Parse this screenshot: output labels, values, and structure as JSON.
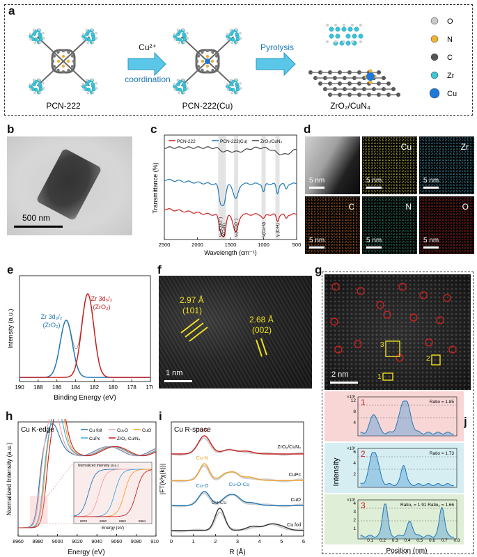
{
  "panels": {
    "a": "a",
    "b": "b",
    "c": "c",
    "d": "d",
    "e": "e",
    "f": "f",
    "g": "g",
    "h": "h",
    "i": "i",
    "j": "j"
  },
  "schematic": {
    "labels": [
      "PCN-222",
      "PCN-222(Cu)",
      "ZrO₂/CuN₄"
    ],
    "arrow1": {
      "line1": "Cu²⁺",
      "line2": "coordination"
    },
    "arrow2": "Pyrolysis",
    "legend": [
      {
        "label": "O",
        "color": "#c9c9c9"
      },
      {
        "label": "N",
        "color": "#f0b030"
      },
      {
        "label": "C",
        "color": "#555555"
      },
      {
        "label": "Zr",
        "color": "#3cc4d8"
      },
      {
        "label": "Cu",
        "color": "#1e78d8"
      }
    ]
  },
  "b_scalebar": "500 nm",
  "ftir": {
    "legend": [
      "PCN-222",
      "PCN-222(Cu)",
      "ZrO₂/CuN₄"
    ],
    "colors": [
      "#c81e1e",
      "#1f77b4",
      "#444444"
    ],
    "ylabel": "Transmittance (%)",
    "xlabel": "Wavelength (cm⁻¹)",
    "xticks": [
      "2500",
      "2000",
      "1500",
      "1000",
      "500"
    ],
    "annotations": [
      "νₐₛ(COO⁻)",
      "ν(C=N)",
      "νₛ(COO⁻)",
      "ν(Cu-N)",
      "γ (C-H)"
    ]
  },
  "eds": {
    "elements": [
      "",
      "Cu",
      "Zr",
      "C",
      "N",
      "O"
    ],
    "scalebar": "5 nm",
    "colors": [
      "#bbbbbb",
      "#d8d83a",
      "#3aa8c8",
      "#e07020",
      "#2a9a70",
      "#d02020"
    ]
  },
  "xps": {
    "peak1": {
      "line1": "Zr 3d₃/₂",
      "line2": "(ZrO₂)"
    },
    "peak2": {
      "line1": "Zr 3d₅/₂",
      "line2": "(ZrO₂)"
    },
    "ylabel": "Intensity (a.u.)",
    "xlabel": "Binding Energy (eV)",
    "xticks": [
      "190",
      "188",
      "186",
      "184",
      "182",
      "180",
      "178",
      "176"
    ],
    "xlim": [
      190,
      176
    ]
  },
  "haadf_f": {
    "d1": "2.97 Å",
    "h1": "(101)",
    "d2": "2.68 Å",
    "h2": "(002)",
    "scalebar": "1 nm"
  },
  "haadf_g": {
    "scalebar": "2 nm",
    "boxes": [
      "1",
      "2",
      "3"
    ]
  },
  "profiles": [
    {
      "id": "1",
      "ratio": "Ratio = 1.85",
      "mult": "×10³",
      "yticks": [
        "12",
        "8",
        "4"
      ],
      "bg": "#f8d6d6",
      "color": "#1f77b4"
    },
    {
      "id": "2",
      "ratio": "Ratio = 1.73",
      "mult": "×10³",
      "yticks": [
        "6",
        "4",
        "2"
      ],
      "bg": "#d6eef2",
      "color": "#1f77b4"
    },
    {
      "id": "3",
      "ratio": "Ratio₁ = 1.91  Ratio₂ = 1.66",
      "mult": "×10³",
      "yticks": [
        "4",
        "3",
        "2",
        "1"
      ],
      "bg": "#dfeed6",
      "color": "#1f77b4"
    }
  ],
  "profiles_axis": {
    "ylabel": "Intensity",
    "xlabel": "Position (nm)",
    "xticks": [
      "0.1",
      "0.2",
      "0.3",
      "0.4",
      "0.5",
      "0.6",
      "0.7",
      "0.8"
    ]
  },
  "xanes": {
    "title": "Cu K-edge",
    "legend": [
      {
        "label": "Cu foil",
        "color": "#1f77b4"
      },
      {
        "label": "Cu₂O",
        "color": "#f0a0a0"
      },
      {
        "label": "CuO",
        "color": "#f0a030"
      },
      {
        "label": "CuPc",
        "color": "#3aa8d8"
      },
      {
        "label": "ZrO₂-Cu/N₄",
        "color": "#c81e1e"
      }
    ],
    "ylabel": "Normalized Intensity (a.u.)",
    "xlabel": "Energy (eV)",
    "xticks": [
      "8960",
      "8980",
      "9000",
      "9020",
      "9040",
      "9060",
      "9080",
      "9100"
    ],
    "inset_xlabel": "Energy (eV)",
    "inset_ylabel": "Normalized Intensity (a.u.)",
    "inset_xticks": [
      "8978",
      "8980",
      "8982",
      "8984"
    ]
  },
  "exafs": {
    "title": "Cu R-space",
    "curves": [
      {
        "label": "ZrO₂/CuN₄",
        "color": "#c81e1e",
        "peak": "Cu-N"
      },
      {
        "label": "CuPc",
        "color": "#f0a030",
        "peak": "Cu-N"
      },
      {
        "label": "CuO",
        "color": "#1f77b4",
        "peak": "Cu-O"
      },
      {
        "label": "Cu foil",
        "color": "#333333",
        "peak": "Cu-Cu"
      }
    ],
    "extra_peak": "Cu-O-Cu",
    "ylabel": "|FT(k³χ(k))|",
    "xlabel": "R (Å)",
    "xticks": [
      "0",
      "1",
      "2",
      "3",
      "4",
      "5",
      "6"
    ]
  }
}
